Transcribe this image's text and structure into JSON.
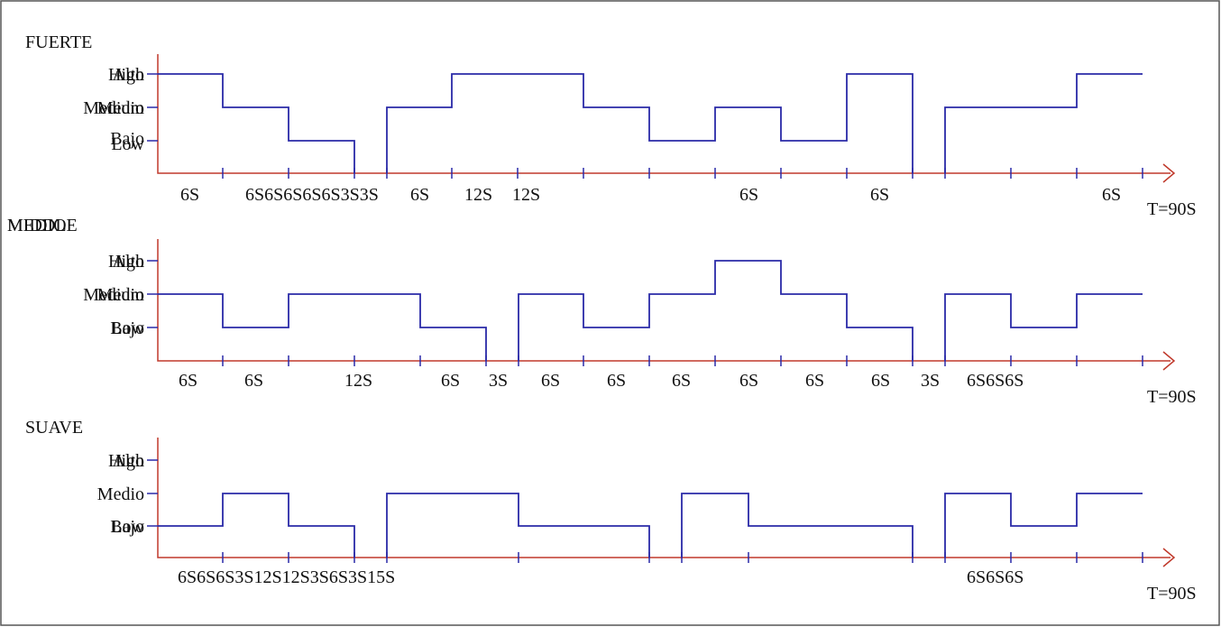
{
  "panels": [
    {
      "title": [
        "FUERTE"
      ],
      "levels": {
        "high": [
          "Alto",
          "High"
        ],
        "medium": [
          "Medio",
          "Medium"
        ],
        "low": [
          "Bajo",
          "Low"
        ]
      },
      "durations": [
        "6S",
        "6S6S6S6S6S3S3S",
        "6S",
        "12S",
        "12S",
        "6S",
        "6S",
        "6S"
      ],
      "total": "T=90S"
    },
    {
      "title": [
        "MEDIO",
        "MIDDLE"
      ],
      "levels": {
        "high": [
          "Alto",
          "High"
        ],
        "medium": [
          "Medio",
          "Medium"
        ],
        "low": [
          "Bajo",
          "Low"
        ]
      },
      "durations": [
        "6S",
        "6S",
        "12S",
        "6S",
        "3S",
        "6S",
        "6S",
        "6S",
        "6S",
        "6S",
        "6S",
        "3S",
        "6S6S6S"
      ],
      "total": "T=90S"
    },
    {
      "title": [
        "SUAVE"
      ],
      "levels": {
        "high": [
          "Alto",
          "High"
        ],
        "medium": [
          "Medio"
        ],
        "low": [
          "Bajo",
          "Low"
        ]
      },
      "durations": [
        "6S6S6S3S12S12S3S6S3S15S",
        "6S6S6S"
      ],
      "total": "T=90S"
    }
  ]
}
